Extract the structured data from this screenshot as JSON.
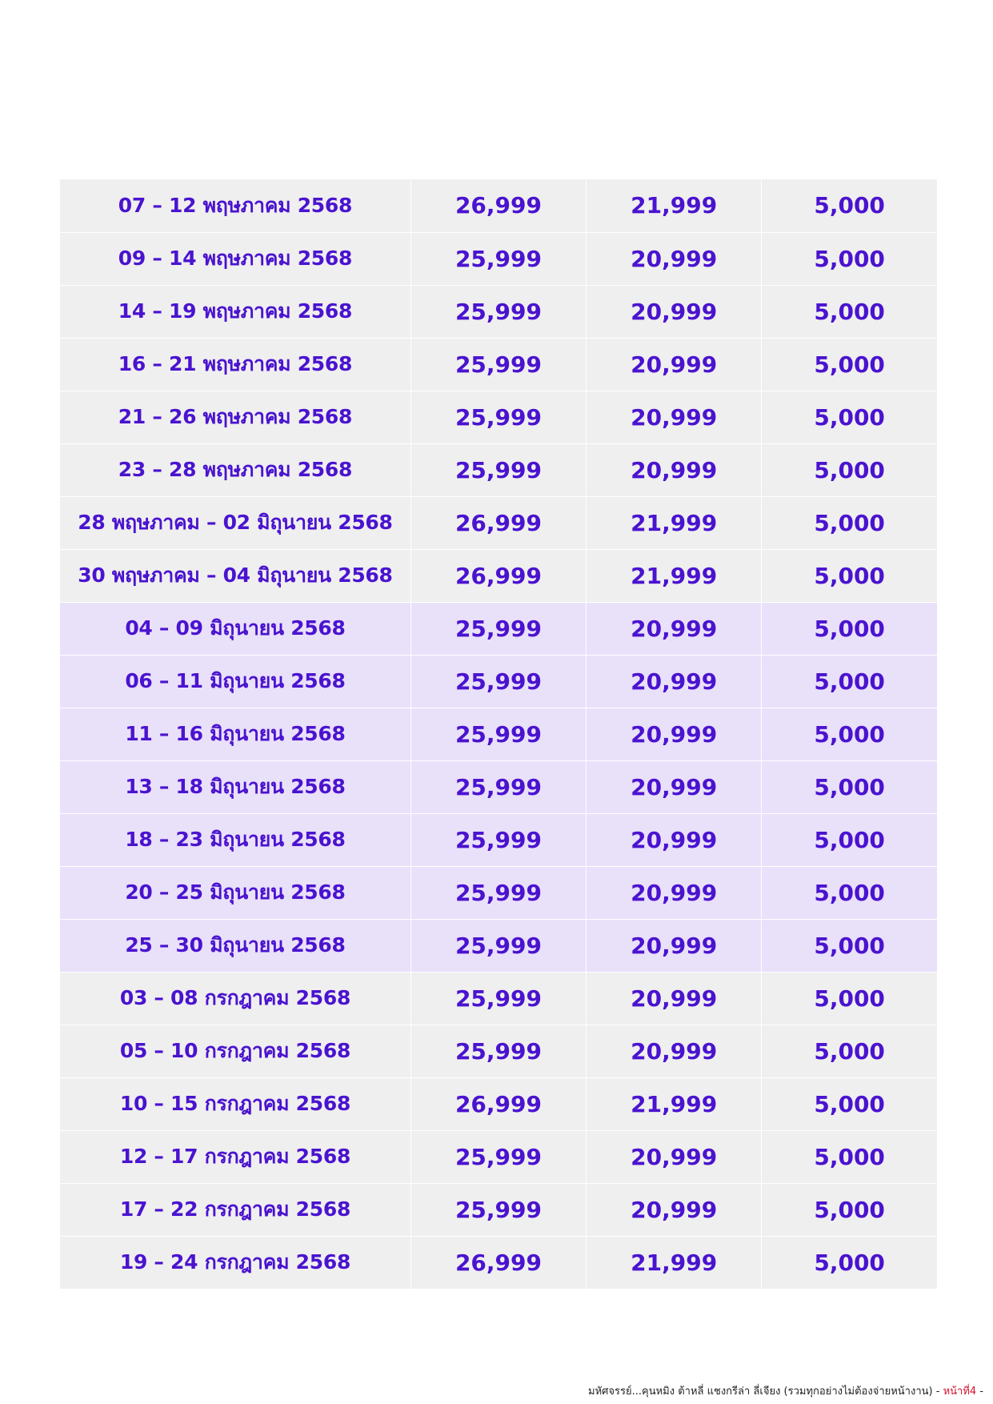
{
  "rows": [
    {
      "group": "may",
      "date": "07 – 12 พฤษภาคม 2568",
      "price_a": "26,999",
      "price_b": "21,999",
      "price_c": "5,000"
    },
    {
      "group": "may",
      "date": "09 – 14 พฤษภาคม 2568",
      "price_a": "25,999",
      "price_b": "20,999",
      "price_c": "5,000"
    },
    {
      "group": "may",
      "date": "14 – 19 พฤษภาคม 2568",
      "price_a": "25,999",
      "price_b": "20,999",
      "price_c": "5,000"
    },
    {
      "group": "may",
      "date": "16 – 21 พฤษภาคม 2568",
      "price_a": "25,999",
      "price_b": "20,999",
      "price_c": "5,000"
    },
    {
      "group": "may",
      "date": "21 – 26 พฤษภาคม 2568",
      "price_a": "25,999",
      "price_b": "20,999",
      "price_c": "5,000"
    },
    {
      "group": "may",
      "date": "23 – 28 พฤษภาคม 2568",
      "price_a": "25,999",
      "price_b": "20,999",
      "price_c": "5,000"
    },
    {
      "group": "may",
      "date": "28 พฤษภาคม – 02 มิถุนายน 2568",
      "price_a": "26,999",
      "price_b": "21,999",
      "price_c": "5,000"
    },
    {
      "group": "may",
      "date": "30 พฤษภาคม – 04 มิถุนายน 2568",
      "price_a": "26,999",
      "price_b": "21,999",
      "price_c": "5,000"
    },
    {
      "group": "jun",
      "date": "04 – 09 มิถุนายน 2568",
      "price_a": "25,999",
      "price_b": "20,999",
      "price_c": "5,000"
    },
    {
      "group": "jun",
      "date": "06 – 11 มิถุนายน 2568",
      "price_a": "25,999",
      "price_b": "20,999",
      "price_c": "5,000"
    },
    {
      "group": "jun",
      "date": "11 – 16 มิถุนายน 2568",
      "price_a": "25,999",
      "price_b": "20,999",
      "price_c": "5,000"
    },
    {
      "group": "jun",
      "date": "13 – 18 มิถุนายน 2568",
      "price_a": "25,999",
      "price_b": "20,999",
      "price_c": "5,000"
    },
    {
      "group": "jun",
      "date": "18 – 23 มิถุนายน 2568",
      "price_a": "25,999",
      "price_b": "20,999",
      "price_c": "5,000"
    },
    {
      "group": "jun",
      "date": "20 – 25 มิถุนายน 2568",
      "price_a": "25,999",
      "price_b": "20,999",
      "price_c": "5,000"
    },
    {
      "group": "jun",
      "date": "25 – 30 มิถุนายน 2568",
      "price_a": "25,999",
      "price_b": "20,999",
      "price_c": "5,000"
    },
    {
      "group": "jul",
      "date": "03 – 08 กรกฎาคม 2568",
      "price_a": "25,999",
      "price_b": "20,999",
      "price_c": "5,000"
    },
    {
      "group": "jul",
      "date": "05 – 10 กรกฎาคม 2568",
      "price_a": "25,999",
      "price_b": "20,999",
      "price_c": "5,000"
    },
    {
      "group": "jul",
      "date": "10 – 15 กรกฎาคม 2568",
      "price_a": "26,999",
      "price_b": "21,999",
      "price_c": "5,000"
    },
    {
      "group": "jul",
      "date": "12 – 17 กรกฎาคม 2568",
      "price_a": "25,999",
      "price_b": "20,999",
      "price_c": "5,000"
    },
    {
      "group": "jul",
      "date": "17 – 22 กรกฎาคม 2568",
      "price_a": "25,999",
      "price_b": "20,999",
      "price_c": "5,000"
    },
    {
      "group": "jul",
      "date": "19 – 24 กรกฎาคม 2568",
      "price_a": "26,999",
      "price_b": "21,999",
      "price_c": "5,000"
    }
  ],
  "colors": {
    "text": "#4a13cf",
    "row_grey": "#efefef",
    "row_lavender": "#e9e0fa",
    "page_number": "#d3122a"
  },
  "footer": {
    "text": "มหัศจรรย์...คุนหมิง ต้าหลี่ แชงกรีล่า ลี่เจียง (รวมทุกอย่างไม่ต้องจ่ายหน้างาน) - ",
    "page_label": "หน้าที่4",
    "suffix": " -"
  }
}
